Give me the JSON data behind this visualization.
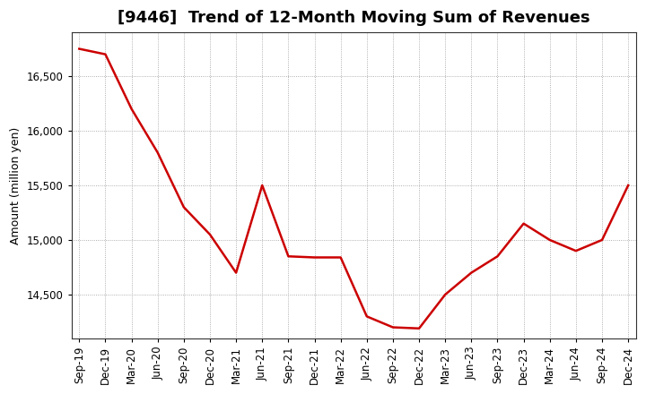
{
  "title": "[9446]  Trend of 12-Month Moving Sum of Revenues",
  "ylabel": "Amount (million yen)",
  "labels": [
    "Sep-19",
    "Dec-19",
    "Mar-20",
    "Jun-20",
    "Sep-20",
    "Dec-20",
    "Mar-21",
    "Jun-21",
    "Sep-21",
    "Dec-21",
    "Mar-22",
    "Jun-22",
    "Sep-22",
    "Dec-22",
    "Mar-23",
    "Jun-23",
    "Sep-23",
    "Dec-23",
    "Mar-24",
    "Jun-24",
    "Sep-24",
    "Dec-24"
  ],
  "values": [
    16750,
    16700,
    16200,
    15800,
    15300,
    15050,
    14700,
    15500,
    14850,
    14840,
    14840,
    14300,
    14200,
    14190,
    14500,
    14700,
    14850,
    15150,
    15000,
    14900,
    15000,
    15500
  ],
  "line_color": "#cc0000",
  "line_width": 1.8,
  "background_color": "#ffffff",
  "plot_bg_color": "#ffffff",
  "grid_color": "#999999",
  "ylim_min": 14100,
  "ylim_max": 16900,
  "yticks": [
    14500,
    15000,
    15500,
    16000,
    16500
  ],
  "title_fontsize": 13,
  "axis_fontsize": 9,
  "tick_fontsize": 8.5
}
